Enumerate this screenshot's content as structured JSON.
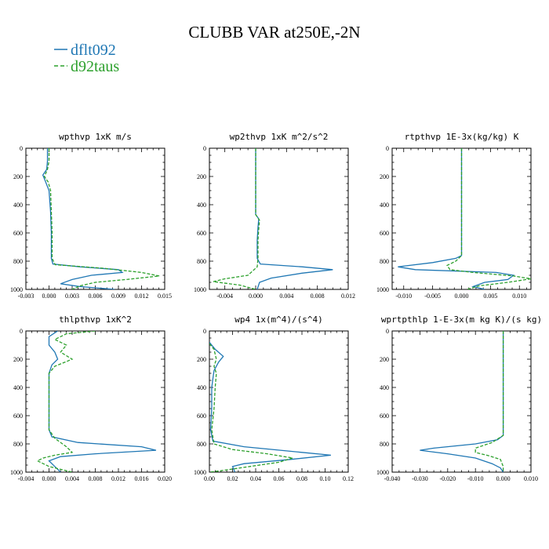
{
  "title": "CLUBB VAR at250E,-2N",
  "legend": [
    {
      "label": "dflt092",
      "color": "#1f77b4",
      "dash": "solid"
    },
    {
      "label": "d92taus",
      "color": "#2ca02c",
      "dash": "dashed"
    }
  ],
  "chart_data": [
    {
      "type": "line",
      "title": "wpthvp  1xK m/s",
      "xlim": [
        -0.003,
        0.015
      ],
      "ylim": [
        1000,
        0
      ],
      "xticks": [
        "-0.003",
        "0.000",
        "0.003",
        "0.006",
        "0.009",
        "0.012",
        "0.015"
      ],
      "xtick_values": [
        -0.003,
        0.0,
        0.003,
        0.006,
        0.009,
        0.012,
        0.015
      ],
      "yticks": [
        "0",
        "200",
        "400",
        "600",
        "800",
        "1000"
      ],
      "series": [
        {
          "name": "dflt092",
          "points": [
            [
              -0.0002,
              0
            ],
            [
              -0.0002,
              90
            ],
            [
              -0.0003,
              150
            ],
            [
              -0.0008,
              190
            ],
            [
              -0.0005,
              230
            ],
            [
              0.0,
              300
            ],
            [
              0.0002,
              450
            ],
            [
              0.0003,
              600
            ],
            [
              0.0003,
              780
            ],
            [
              0.0005,
              820
            ],
            [
              0.004,
              840
            ],
            [
              0.009,
              860
            ],
            [
              0.0095,
              880
            ],
            [
              0.0055,
              900
            ],
            [
              0.003,
              930
            ],
            [
              0.0015,
              960
            ],
            [
              0.004,
              980
            ],
            [
              0.0085,
              1000
            ]
          ]
        },
        {
          "name": "d92taus",
          "points": [
            [
              0.0,
              0
            ],
            [
              0.0,
              90
            ],
            [
              -0.0002,
              150
            ],
            [
              -0.0006,
              200
            ],
            [
              -0.0001,
              240
            ],
            [
              0.0002,
              300
            ],
            [
              0.0003,
              450
            ],
            [
              0.0004,
              600
            ],
            [
              0.0004,
              780
            ],
            [
              0.0008,
              825
            ],
            [
              0.007,
              850
            ],
            [
              0.012,
              880
            ],
            [
              0.0143,
              905
            ],
            [
              0.01,
              930
            ],
            [
              0.006,
              950
            ],
            [
              0.004,
              975
            ],
            [
              0.003,
              1000
            ]
          ]
        }
      ]
    },
    {
      "type": "line",
      "title": "wp2thvp  1xK m^2/s^2",
      "xlim": [
        -0.006,
        0.012
      ],
      "ylim": [
        1000,
        0
      ],
      "xticks": [
        "-0.004",
        "0.000",
        "0.004",
        "0.008",
        "0.012"
      ],
      "xtick_values": [
        -0.004,
        0.0,
        0.004,
        0.008,
        0.012
      ],
      "yticks": [
        "0",
        "200",
        "400",
        "600",
        "800",
        "1000"
      ],
      "series": [
        {
          "name": "dflt092",
          "points": [
            [
              0.0,
              0
            ],
            [
              0.0,
              300
            ],
            [
              0.0,
              470
            ],
            [
              0.0004,
              500
            ],
            [
              0.0003,
              560
            ],
            [
              0.0002,
              650
            ],
            [
              0.0002,
              780
            ],
            [
              0.0006,
              820
            ],
            [
              0.006,
              840
            ],
            [
              0.01,
              860
            ],
            [
              0.006,
              885
            ],
            [
              0.002,
              920
            ],
            [
              0.0005,
              950
            ],
            [
              0.0002,
              1000
            ]
          ]
        },
        {
          "name": "d92taus",
          "points": [
            [
              0.0,
              0
            ],
            [
              0.0,
              300
            ],
            [
              0.0,
              470
            ],
            [
              0.0005,
              510
            ],
            [
              0.0004,
              570
            ],
            [
              0.0003,
              650
            ],
            [
              0.0003,
              780
            ],
            [
              0.0002,
              840
            ],
            [
              -0.001,
              900
            ],
            [
              -0.004,
              925
            ],
            [
              -0.0055,
              945
            ],
            [
              -0.002,
              970
            ],
            [
              0.0,
              1000
            ]
          ]
        }
      ]
    },
    {
      "type": "line",
      "title": "rtpthvp  1E-3x(kg/kg) K",
      "xlim": [
        -0.012,
        0.012
      ],
      "ylim": [
        1000,
        0
      ],
      "xticks": [
        "-0.010",
        "-0.005",
        "0.000",
        "0.005",
        "0.010"
      ],
      "xtick_values": [
        -0.01,
        -0.005,
        0.0,
        0.005,
        0.01
      ],
      "yticks": [
        "0",
        "200",
        "400",
        "600",
        "800",
        "1000"
      ],
      "series": [
        {
          "name": "dflt092",
          "points": [
            [
              0.0,
              0
            ],
            [
              0.0,
              600
            ],
            [
              0.0,
              760
            ],
            [
              -0.001,
              780
            ],
            [
              -0.005,
              810
            ],
            [
              -0.011,
              840
            ],
            [
              -0.008,
              860
            ],
            [
              0.006,
              880
            ],
            [
              0.009,
              900
            ],
            [
              0.008,
              930
            ],
            [
              0.004,
              950
            ],
            [
              0.002,
              980
            ],
            [
              0.004,
              1000
            ]
          ]
        },
        {
          "name": "d92taus",
          "points": [
            [
              0.0,
              0
            ],
            [
              0.0,
              600
            ],
            [
              0.0,
              760
            ],
            [
              -0.001,
              800
            ],
            [
              -0.0025,
              830
            ],
            [
              -0.002,
              860
            ],
            [
              0.002,
              880
            ],
            [
              0.009,
              905
            ],
            [
              0.012,
              925
            ],
            [
              0.008,
              950
            ],
            [
              0.003,
              975
            ],
            [
              0.001,
              1000
            ]
          ]
        }
      ]
    },
    {
      "type": "line",
      "title": "thlpthvp  1xK^2",
      "xlim": [
        -0.004,
        0.02
      ],
      "ylim": [
        1000,
        0
      ],
      "xticks": [
        "-0.004",
        "0.000",
        "0.004",
        "0.008",
        "0.012",
        "0.016",
        "0.020"
      ],
      "xtick_values": [
        -0.004,
        0.0,
        0.004,
        0.008,
        0.012,
        0.016,
        0.02
      ],
      "yticks": [
        "0",
        "200",
        "400",
        "600",
        "800",
        "1000"
      ],
      "series": [
        {
          "name": "dflt092",
          "points": [
            [
              0.0015,
              0
            ],
            [
              0.0,
              40
            ],
            [
              0.0,
              100
            ],
            [
              0.001,
              150
            ],
            [
              0.0015,
              200
            ],
            [
              0.0005,
              240
            ],
            [
              0.0,
              300
            ],
            [
              0.0,
              500
            ],
            [
              0.0,
              700
            ],
            [
              0.0005,
              750
            ],
            [
              0.005,
              790
            ],
            [
              0.016,
              820
            ],
            [
              0.0185,
              845
            ],
            [
              0.008,
              870
            ],
            [
              0.002,
              890
            ],
            [
              0.0,
              920
            ],
            [
              0.001,
              960
            ],
            [
              0.002,
              1000
            ]
          ]
        },
        {
          "name": "d92taus",
          "points": [
            [
              0.008,
              0
            ],
            [
              0.003,
              20
            ],
            [
              0.001,
              60
            ],
            [
              0.003,
              100
            ],
            [
              0.002,
              150
            ],
            [
              0.004,
              200
            ],
            [
              0.001,
              250
            ],
            [
              0.0,
              300
            ],
            [
              0.0,
              500
            ],
            [
              0.0,
              700
            ],
            [
              0.001,
              760
            ],
            [
              0.003,
              820
            ],
            [
              0.004,
              860
            ],
            [
              0.001,
              880
            ],
            [
              -0.001,
              900
            ],
            [
              -0.002,
              920
            ],
            [
              0.0,
              960
            ],
            [
              0.004,
              1000
            ]
          ]
        }
      ]
    },
    {
      "type": "line",
      "title": "wp4  1x(m^4)/(s^4)",
      "xlim": [
        0.0,
        0.12
      ],
      "ylim": [
        1000,
        0
      ],
      "xticks": [
        "0.00",
        "0.02",
        "0.04",
        "0.06",
        "0.08",
        "0.10",
        "0.12"
      ],
      "xtick_values": [
        0.0,
        0.02,
        0.04,
        0.06,
        0.08,
        0.1,
        0.12
      ],
      "yticks": [
        "0",
        "200",
        "400",
        "600",
        "800",
        "1000"
      ],
      "series": [
        {
          "name": "dflt092",
          "points": [
            [
              0.0,
              80
            ],
            [
              0.005,
              130
            ],
            [
              0.012,
              180
            ],
            [
              0.008,
              220
            ],
            [
              0.004,
              280
            ],
            [
              0.002,
              400
            ],
            [
              0.002,
              550
            ],
            [
              0.001,
              700
            ],
            [
              0.003,
              780
            ],
            [
              0.03,
              820
            ],
            [
              0.08,
              860
            ],
            [
              0.105,
              880
            ],
            [
              0.07,
              910
            ],
            [
              0.03,
              940
            ],
            [
              0.02,
              960
            ],
            [
              0.022,
              1000
            ]
          ]
        },
        {
          "name": "d92taus",
          "points": [
            [
              0.0,
              90
            ],
            [
              0.004,
              130
            ],
            [
              0.006,
              200
            ],
            [
              0.004,
              250
            ],
            [
              0.006,
              300
            ],
            [
              0.005,
              400
            ],
            [
              0.004,
              550
            ],
            [
              0.002,
              700
            ],
            [
              0.004,
              800
            ],
            [
              0.02,
              840
            ],
            [
              0.05,
              870
            ],
            [
              0.072,
              900
            ],
            [
              0.06,
              930
            ],
            [
              0.035,
              960
            ],
            [
              0.01,
              990
            ],
            [
              0.0,
              1000
            ]
          ]
        }
      ]
    },
    {
      "type": "line",
      "title": "wprtpthlp  1-E-3x(m kg K)/(s kg)",
      "xlim": [
        -0.04,
        0.01
      ],
      "ylim": [
        1000,
        0
      ],
      "xticks": [
        "-0.040",
        "-0.030",
        "-0.020",
        "-0.010",
        "0.000",
        "0.010"
      ],
      "xtick_values": [
        -0.04,
        -0.03,
        -0.02,
        -0.01,
        0.0,
        0.01
      ],
      "yticks": [
        "0",
        "200",
        "400",
        "600",
        "800",
        "1000"
      ],
      "series": [
        {
          "name": "dflt092",
          "points": [
            [
              0.0,
              0
            ],
            [
              0.0,
              500
            ],
            [
              0.0,
              740
            ],
            [
              -0.002,
              770
            ],
            [
              -0.01,
              800
            ],
            [
              -0.025,
              830
            ],
            [
              -0.03,
              845
            ],
            [
              -0.02,
              870
            ],
            [
              -0.01,
              900
            ],
            [
              -0.004,
              940
            ],
            [
              -0.001,
              970
            ],
            [
              0.0,
              1000
            ]
          ]
        },
        {
          "name": "d92taus",
          "points": [
            [
              0.0,
              0
            ],
            [
              0.0,
              500
            ],
            [
              0.0,
              740
            ],
            [
              -0.004,
              790
            ],
            [
              -0.01,
              830
            ],
            [
              -0.01,
              860
            ],
            [
              -0.005,
              885
            ],
            [
              -0.001,
              910
            ],
            [
              0.0,
              960
            ],
            [
              0.0,
              1000
            ]
          ]
        }
      ]
    }
  ]
}
